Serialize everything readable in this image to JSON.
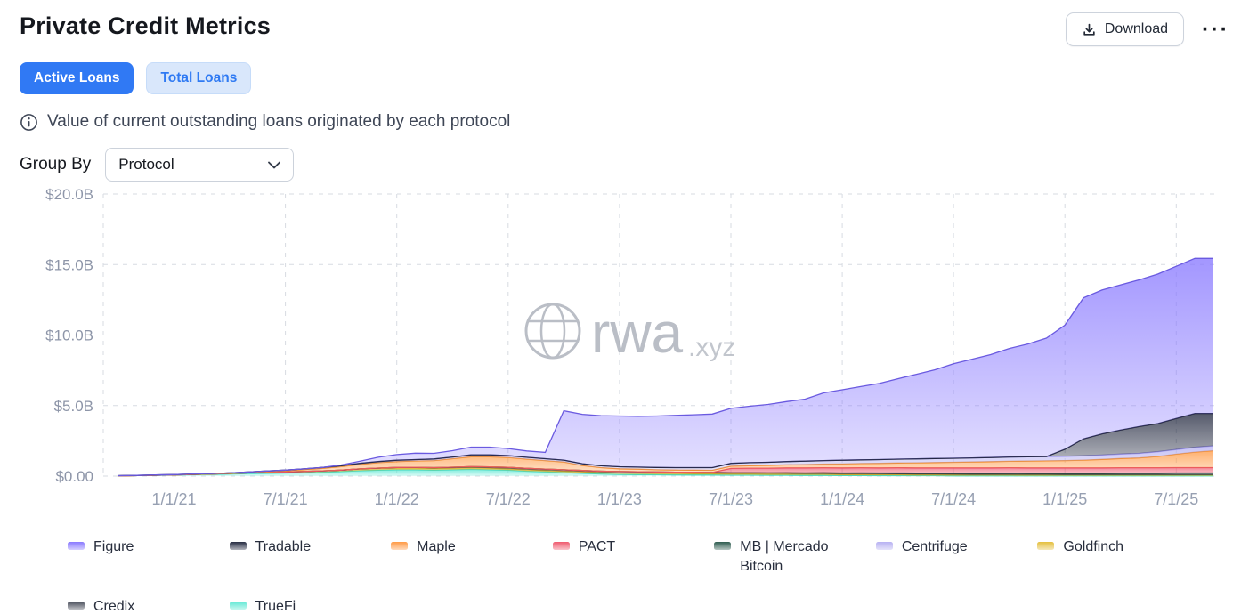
{
  "header": {
    "title": "Private Credit Metrics",
    "download_label": "Download",
    "more_menu": "···"
  },
  "tabs": [
    {
      "label": "Active Loans",
      "active": true
    },
    {
      "label": "Total Loans",
      "active": false
    }
  ],
  "info": {
    "text": "Value of current outstanding loans originated by each protocol"
  },
  "group_by": {
    "label": "Group By",
    "selected": "Protocol"
  },
  "watermark": {
    "brand": "rwa",
    "tld": ".xyz"
  },
  "chart_data": {
    "type": "area",
    "stacked": true,
    "title": "Active Loans by Protocol",
    "unit": "USD (billions)",
    "ylim": [
      0,
      20
    ],
    "grid": "dashed",
    "legend_position": "bottom",
    "yticks": [
      {
        "value": 0,
        "label": "$0.00"
      },
      {
        "value": 5,
        "label": "$5.0B"
      },
      {
        "value": 10,
        "label": "$10.0B"
      },
      {
        "value": 15,
        "label": "$15.0B"
      },
      {
        "value": 20,
        "label": "$20.0B"
      }
    ],
    "xticks": [
      {
        "i": 3,
        "label": "1/1/21"
      },
      {
        "i": 9,
        "label": "7/1/21"
      },
      {
        "i": 15,
        "label": "1/1/22"
      },
      {
        "i": 21,
        "label": "7/1/22"
      },
      {
        "i": 27,
        "label": "1/1/23"
      },
      {
        "i": 33,
        "label": "7/1/23"
      },
      {
        "i": 39,
        "label": "1/1/24"
      },
      {
        "i": 45,
        "label": "7/1/24"
      },
      {
        "i": 51,
        "label": "1/1/25"
      },
      {
        "i": 57,
        "label": "7/1/25"
      }
    ],
    "x_months": [
      "2020-10",
      "2020-11",
      "2020-12",
      "2021-01",
      "2021-02",
      "2021-03",
      "2021-04",
      "2021-05",
      "2021-06",
      "2021-07",
      "2021-08",
      "2021-09",
      "2021-10",
      "2021-11",
      "2021-12",
      "2022-01",
      "2022-02",
      "2022-03",
      "2022-04",
      "2022-05",
      "2022-06",
      "2022-07",
      "2022-08",
      "2022-09",
      "2022-10",
      "2022-11",
      "2022-12",
      "2023-01",
      "2023-02",
      "2023-03",
      "2023-04",
      "2023-05",
      "2023-06",
      "2023-07",
      "2023-08",
      "2023-09",
      "2023-10",
      "2023-11",
      "2023-12",
      "2024-01",
      "2024-02",
      "2024-03",
      "2024-04",
      "2024-05",
      "2024-06",
      "2024-07",
      "2024-08",
      "2024-09",
      "2024-10",
      "2024-11",
      "2024-12",
      "2025-01",
      "2025-02",
      "2025-03",
      "2025-04",
      "2025-05",
      "2025-06",
      "2025-07",
      "2025-08",
      "2025-09"
    ],
    "series": [
      {
        "name": "TrueFi",
        "color": "#5fe8d4",
        "stroke": "#3fd9c0",
        "values": [
          0.02,
          0.04,
          0.06,
          0.08,
          0.1,
          0.12,
          0.15,
          0.18,
          0.2,
          0.22,
          0.25,
          0.28,
          0.32,
          0.38,
          0.42,
          0.45,
          0.45,
          0.42,
          0.45,
          0.48,
          0.45,
          0.42,
          0.35,
          0.3,
          0.25,
          0.2,
          0.15,
          0.12,
          0.11,
          0.1,
          0.09,
          0.08,
          0.08,
          0.07,
          0.07,
          0.06,
          0.06,
          0.05,
          0.05,
          0.04,
          0.04,
          0.03,
          0.03,
          0.03,
          0.03,
          0.02,
          0.02,
          0.02,
          0.02,
          0.02,
          0.02,
          0.02,
          0.02,
          0.02,
          0.02,
          0.02,
          0.02,
          0.02,
          0.02,
          0.02
        ]
      },
      {
        "name": "Goldfinch",
        "color": "#e4bf3e",
        "stroke": "#d4ac27",
        "values": [
          0,
          0,
          0,
          0.01,
          0.02,
          0.03,
          0.04,
          0.05,
          0.06,
          0.07,
          0.08,
          0.09,
          0.1,
          0.11,
          0.12,
          0.12,
          0.12,
          0.12,
          0.11,
          0.11,
          0.11,
          0.1,
          0.1,
          0.1,
          0.1,
          0.1,
          0.1,
          0.1,
          0.1,
          0.09,
          0.09,
          0.09,
          0.09,
          0.08,
          0.08,
          0.08,
          0.08,
          0.08,
          0.08,
          0.07,
          0.07,
          0.07,
          0.07,
          0.06,
          0.06,
          0.06,
          0.06,
          0.06,
          0.06,
          0.05,
          0.05,
          0.05,
          0.05,
          0.05,
          0.05,
          0.05,
          0.05,
          0.05,
          0.05,
          0.05
        ]
      },
      {
        "name": "Credix",
        "color": "#474c59",
        "stroke": "#3c414d",
        "values": [
          0,
          0,
          0,
          0,
          0,
          0,
          0,
          0,
          0,
          0,
          0,
          0,
          0,
          0.02,
          0.03,
          0.04,
          0.05,
          0.06,
          0.07,
          0.08,
          0.09,
          0.1,
          0.1,
          0.1,
          0.1,
          0.1,
          0.1,
          0.1,
          0.1,
          0.1,
          0.1,
          0.1,
          0.09,
          0.09,
          0.09,
          0.09,
          0.08,
          0.08,
          0.08,
          0.08,
          0.08,
          0.08,
          0.07,
          0.07,
          0.07,
          0.07,
          0.06,
          0.06,
          0.06,
          0.06,
          0.06,
          0.05,
          0.05,
          0.05,
          0.05,
          0.05,
          0.05,
          0.05,
          0.05,
          0.05
        ]
      },
      {
        "name": "MB | Mercado Bitcoin",
        "color": "#2f5d50",
        "stroke": "#27493f",
        "values": [
          0,
          0,
          0,
          0,
          0,
          0,
          0,
          0,
          0,
          0,
          0,
          0,
          0,
          0,
          0,
          0,
          0,
          0,
          0,
          0,
          0,
          0,
          0,
          0,
          0,
          0,
          0,
          0,
          0,
          0,
          0,
          0,
          0,
          0,
          0,
          0,
          0.02,
          0.02,
          0.03,
          0.03,
          0.04,
          0.04,
          0.05,
          0.05,
          0.05,
          0.06,
          0.06,
          0.06,
          0.07,
          0.07,
          0.07,
          0.08,
          0.08,
          0.08,
          0.09,
          0.09,
          0.09,
          0.1,
          0.1,
          0.1
        ]
      },
      {
        "name": "PACT",
        "color": "#ef5a6f",
        "stroke": "#e74b62",
        "values": [
          0,
          0,
          0,
          0,
          0,
          0,
          0,
          0,
          0,
          0,
          0,
          0,
          0,
          0,
          0,
          0,
          0,
          0,
          0,
          0,
          0,
          0,
          0,
          0,
          0,
          0,
          0,
          0,
          0,
          0,
          0,
          0,
          0,
          0.3,
          0.32,
          0.33,
          0.34,
          0.35,
          0.35,
          0.36,
          0.36,
          0.36,
          0.37,
          0.37,
          0.37,
          0.37,
          0.38,
          0.38,
          0.38,
          0.38,
          0.38,
          0.38,
          0.38,
          0.38,
          0.38,
          0.38,
          0.38,
          0.38,
          0.38,
          0.38
        ]
      },
      {
        "name": "Maple",
        "color": "#ff9a45",
        "stroke": "#f08a28",
        "values": [
          0,
          0,
          0,
          0,
          0,
          0,
          0,
          0.02,
          0.05,
          0.08,
          0.12,
          0.18,
          0.25,
          0.32,
          0.38,
          0.42,
          0.45,
          0.5,
          0.6,
          0.7,
          0.72,
          0.7,
          0.65,
          0.6,
          0.55,
          0.35,
          0.25,
          0.2,
          0.18,
          0.16,
          0.15,
          0.15,
          0.15,
          0.16,
          0.18,
          0.2,
          0.22,
          0.24,
          0.26,
          0.28,
          0.3,
          0.32,
          0.34,
          0.36,
          0.38,
          0.4,
          0.42,
          0.44,
          0.46,
          0.48,
          0.5,
          0.52,
          0.55,
          0.6,
          0.65,
          0.7,
          0.8,
          0.95,
          1.1,
          1.2
        ]
      },
      {
        "name": "Centrifuge",
        "color": "#b7b1f2",
        "stroke": "#9f98ec",
        "values": [
          0.01,
          0.01,
          0.02,
          0.02,
          0.03,
          0.03,
          0.04,
          0.04,
          0.05,
          0.05,
          0.06,
          0.06,
          0.07,
          0.07,
          0.08,
          0.09,
          0.1,
          0.11,
          0.12,
          0.13,
          0.13,
          0.13,
          0.13,
          0.13,
          0.13,
          0.13,
          0.13,
          0.14,
          0.15,
          0.16,
          0.17,
          0.18,
          0.19,
          0.2,
          0.21,
          0.22,
          0.23,
          0.24,
          0.25,
          0.26,
          0.26,
          0.27,
          0.27,
          0.28,
          0.28,
          0.28,
          0.29,
          0.29,
          0.3,
          0.3,
          0.3,
          0.3,
          0.31,
          0.31,
          0.32,
          0.32,
          0.33,
          0.33,
          0.34,
          0.34
        ]
      },
      {
        "name": "Tradable",
        "color": "#262c42",
        "stroke": "#1c2136",
        "values": [
          0,
          0,
          0,
          0,
          0,
          0,
          0,
          0,
          0,
          0,
          0,
          0,
          0,
          0,
          0,
          0,
          0,
          0,
          0,
          0,
          0,
          0,
          0,
          0,
          0,
          0,
          0,
          0,
          0,
          0,
          0,
          0,
          0,
          0,
          0,
          0,
          0,
          0,
          0,
          0,
          0,
          0,
          0,
          0,
          0,
          0,
          0,
          0,
          0,
          0,
          0,
          0.5,
          1.2,
          1.5,
          1.7,
          1.9,
          2.0,
          2.2,
          2.4,
          2.3
        ]
      },
      {
        "name": "Figure",
        "color": "#8979ff",
        "stroke": "#6a5ae0",
        "values": [
          0,
          0,
          0,
          0,
          0,
          0,
          0,
          0,
          0,
          0,
          0,
          0,
          0.05,
          0.15,
          0.3,
          0.4,
          0.45,
          0.4,
          0.45,
          0.55,
          0.55,
          0.5,
          0.45,
          0.45,
          3.5,
          3.5,
          3.55,
          3.6,
          3.6,
          3.65,
          3.7,
          3.75,
          3.8,
          3.9,
          4.0,
          4.1,
          4.25,
          4.4,
          4.8,
          5.0,
          5.2,
          5.4,
          5.7,
          6.0,
          6.3,
          6.7,
          7.0,
          7.3,
          7.7,
          8.0,
          8.4,
          8.8,
          10.0,
          10.2,
          10.3,
          10.4,
          10.6,
          10.8,
          11.0,
          11.0
        ]
      }
    ],
    "legend": [
      {
        "name": "Figure",
        "color": "#8979ff"
      },
      {
        "name": "Tradable",
        "color": "#262c42"
      },
      {
        "name": "Maple",
        "color": "#ff9a45"
      },
      {
        "name": "PACT",
        "color": "#ef5a6f"
      },
      {
        "name": "MB | Mercado Bitcoin",
        "color": "#2f5d50"
      },
      {
        "name": "Centrifuge",
        "color": "#b7b1f2"
      },
      {
        "name": "Goldfinch",
        "color": "#e4bf3e"
      },
      {
        "name": "Credix",
        "color": "#474c59"
      },
      {
        "name": "TrueFi",
        "color": "#5fe8d4"
      }
    ]
  }
}
